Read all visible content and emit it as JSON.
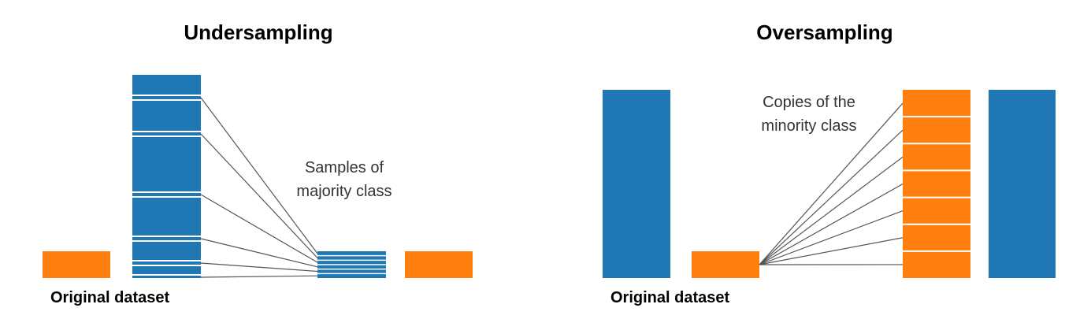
{
  "colors": {
    "majority": "#1f77b4",
    "minority": "#ff7f0e",
    "divider": "#ffffff",
    "connector": "#555555"
  },
  "undersampling": {
    "title": "Undersampling",
    "caption": "Original dataset",
    "annotation_line1": "Samples of",
    "annotation_line2": "majority class",
    "sample_count": 6
  },
  "oversampling": {
    "title": "Oversampling",
    "caption": "Original dataset",
    "annotation_line1": "Copies of the",
    "annotation_line2": "minority class",
    "copy_count": 7
  }
}
